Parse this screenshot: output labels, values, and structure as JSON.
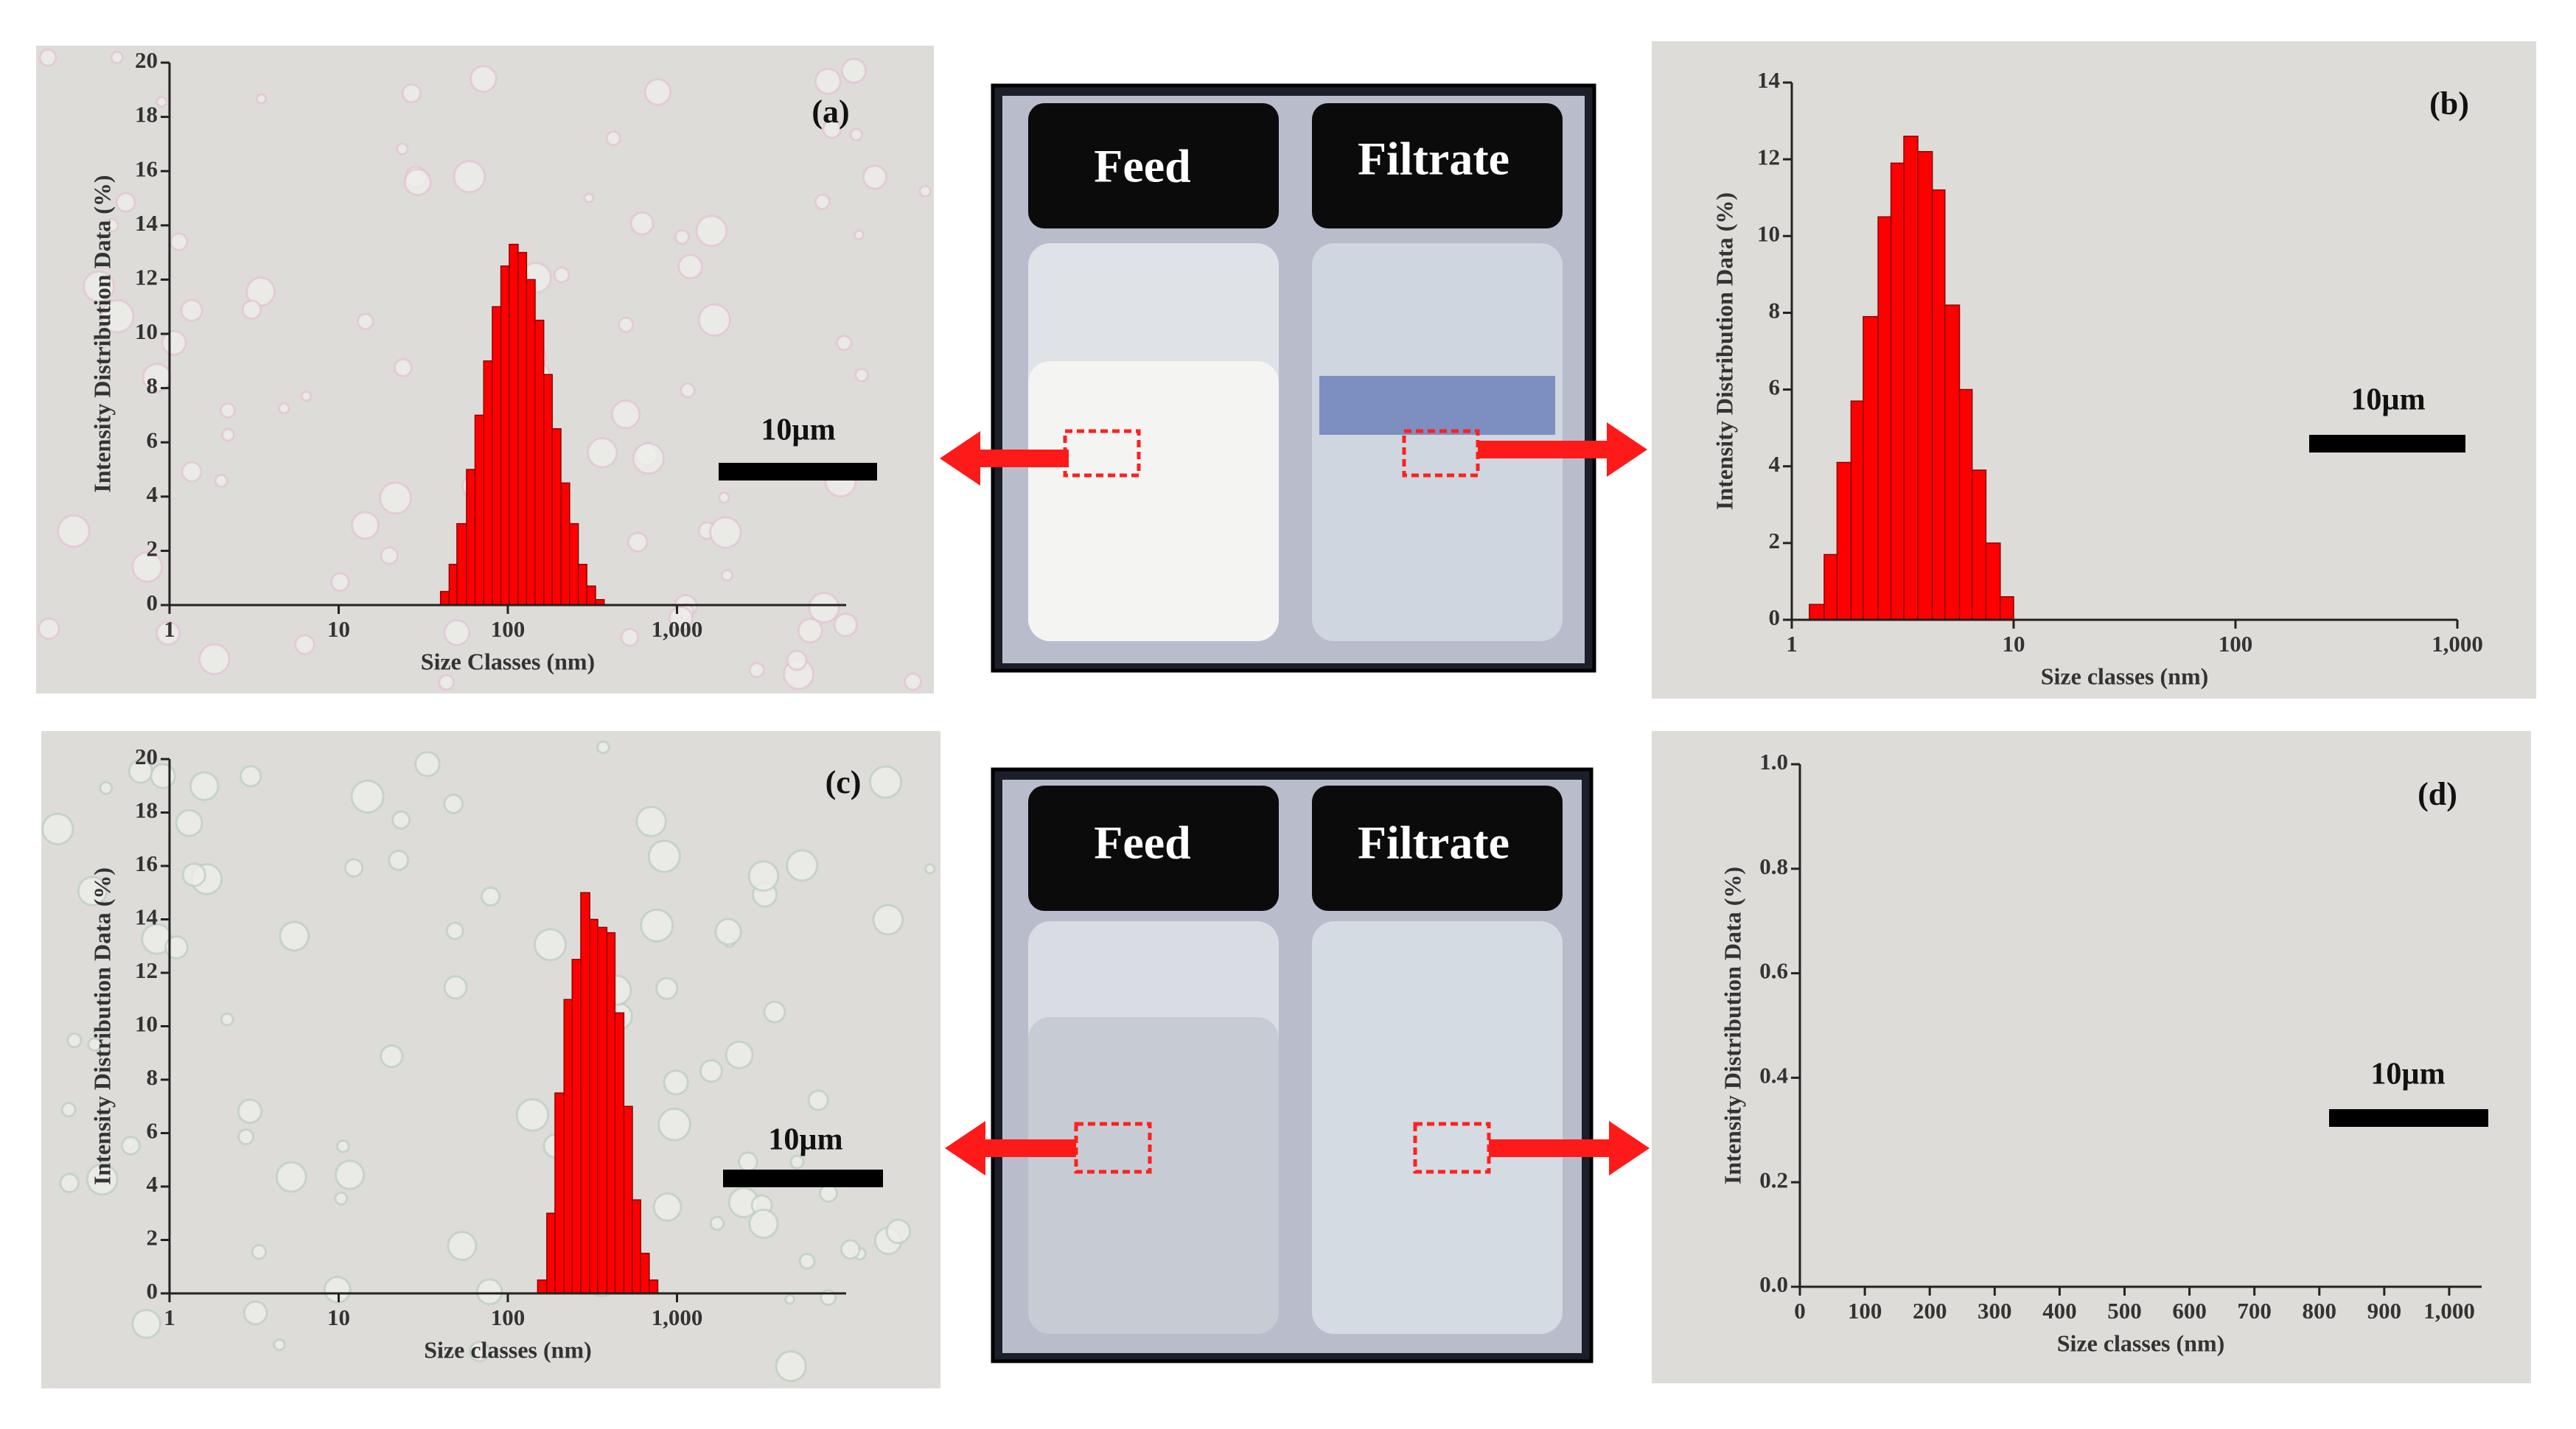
{
  "chart_data": [
    {
      "type": "histogram",
      "panel_label": "(a)",
      "scale_bar": "10µm",
      "x_label": "Size Classes (nm)",
      "y_label": "Intensity Distribution Data (%)",
      "log_x": true,
      "color": "#ff0000",
      "xlim": [
        1,
        10000
      ],
      "xticks": [
        1,
        10,
        100,
        {
          "value": 1000,
          "label": "1,000"
        }
      ],
      "ylim": [
        0,
        20
      ],
      "yticks": [
        0,
        2,
        4,
        6,
        8,
        10,
        12,
        14,
        16,
        18,
        20
      ],
      "bins": [
        40,
        45,
        50,
        57,
        64,
        72,
        81,
        91,
        102,
        115,
        129,
        145,
        163,
        183,
        206,
        232,
        261,
        293,
        330,
        371
      ],
      "values": [
        0.5,
        1.5,
        3,
        5,
        7,
        9,
        11,
        12.5,
        13.3,
        13,
        12,
        10.5,
        8.5,
        6.5,
        4.5,
        3,
        1.5,
        0.7,
        0.2
      ]
    },
    {
      "type": "histogram",
      "panel_label": "(b)",
      "scale_bar": "10µm",
      "x_label": "Size classes (nm)",
      "y_label": "Intensity Distribution Data (%)",
      "log_x": true,
      "color": "#ff0000",
      "xlim": [
        1,
        1000
      ],
      "xticks": [
        1,
        10,
        100,
        {
          "value": 1000,
          "label": "1,000"
        }
      ],
      "ylim": [
        0,
        14
      ],
      "yticks": [
        0,
        2,
        4,
        6,
        8,
        10,
        12,
        14
      ],
      "bins": [
        1.2,
        1.4,
        1.6,
        1.85,
        2.1,
        2.45,
        2.8,
        3.2,
        3.7,
        4.3,
        4.9,
        5.7,
        6.5,
        7.5,
        8.7,
        10
      ],
      "values": [
        0.4,
        1.7,
        4.1,
        5.7,
        7.9,
        10.5,
        11.9,
        12.6,
        12.2,
        11.2,
        8.2,
        6,
        3.9,
        2,
        0.6
      ]
    },
    {
      "type": "histogram",
      "panel_label": "(c)",
      "scale_bar": "10µm",
      "x_label": "Size classes (nm)",
      "y_label": "Intensity Distribution Data (%)",
      "log_x": true,
      "color": "#ff0000",
      "xlim": [
        1,
        10000
      ],
      "xticks": [
        1,
        10,
        100,
        {
          "value": 1000,
          "label": "1,000"
        }
      ],
      "ylim": [
        0,
        20
      ],
      "yticks": [
        0,
        2,
        4,
        6,
        8,
        10,
        12,
        14,
        16,
        18,
        20
      ],
      "bins": [
        150,
        170,
        190,
        215,
        240,
        270,
        305,
        340,
        385,
        430,
        485,
        545,
        610,
        685,
        770
      ],
      "values": [
        0.5,
        3,
        7.5,
        11,
        12.5,
        15,
        14,
        13.7,
        13.5,
        10.5,
        7,
        3.5,
        1.5,
        0.5
      ]
    },
    {
      "type": "histogram",
      "panel_label": "(d)",
      "scale_bar": "10µm",
      "x_label": "Size classes (nm)",
      "y_label": "Intensity Distribution Data (%)",
      "log_x": false,
      "color": "#ff0000",
      "xlim": [
        0,
        1050
      ],
      "xticks": [
        0,
        100,
        200,
        300,
        400,
        500,
        600,
        700,
        800,
        900,
        {
          "value": 1000,
          "label": "1,000"
        }
      ],
      "ylim": [
        0,
        1
      ],
      "yticks": [
        {
          "value": 0,
          "label": "0.0"
        },
        0.2,
        0.4,
        0.6,
        0.8,
        {
          "value": 1,
          "label": "1.0"
        }
      ]
    }
  ],
  "photos": [
    {
      "labels": [
        "Feed",
        "Filtrate"
      ]
    },
    {
      "labels": [
        "Feed",
        "Filtrate"
      ]
    }
  ]
}
